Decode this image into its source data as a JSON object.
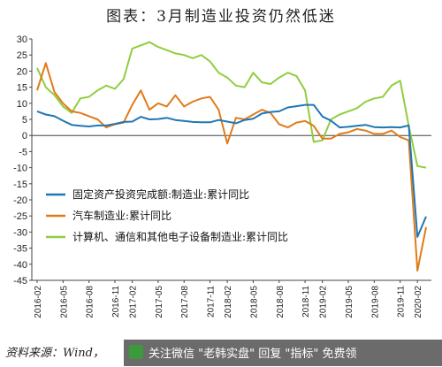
{
  "chart_data": {
    "type": "line",
    "title": "图表：3月制造业投资仍然低迷",
    "xlabel": "",
    "ylabel": "",
    "ylim": [
      -45,
      30
    ],
    "yticks": [
      30,
      25,
      20,
      15,
      10,
      5,
      0,
      -5,
      -10,
      -15,
      -20,
      -25,
      -30,
      -35,
      -40,
      -45
    ],
    "x": [
      "2016-02",
      "2016-03",
      "2016-04",
      "2016-05",
      "2016-06",
      "2016-07",
      "2016-08",
      "2016-09",
      "2016-10",
      "2016-11",
      "2016-12",
      "2017-02",
      "2017-03",
      "2017-04",
      "2017-05",
      "2017-06",
      "2017-07",
      "2017-08",
      "2017-09",
      "2017-10",
      "2017-11",
      "2017-12",
      "2018-02",
      "2018-03",
      "2018-04",
      "2018-05",
      "2018-06",
      "2018-07",
      "2018-08",
      "2018-09",
      "2018-10",
      "2018-11",
      "2018-12",
      "2019-02",
      "2019-03",
      "2019-04",
      "2019-05",
      "2019-06",
      "2019-07",
      "2019-08",
      "2019-09",
      "2019-10",
      "2019-11",
      "2019-12",
      "2020-02",
      "2020-03"
    ],
    "xtick_labels": [
      "2016-02",
      "2016-05",
      "2016-08",
      "2016-11",
      "2017-02",
      "2017-05",
      "2017-08",
      "2017-11",
      "2018-02",
      "2018-05",
      "2018-08",
      "2018-11",
      "2019-02",
      "2019-05",
      "2019-08",
      "2019-11",
      "2020-02"
    ],
    "grid": false,
    "legend_position": "lower-left",
    "series": [
      {
        "name": "固定资产投资完成额:制造业:累计同比",
        "color": "#1f77b4",
        "values": [
          7.5,
          6.5,
          6.0,
          4.6,
          3.3,
          3.0,
          2.8,
          3.1,
          3.1,
          3.6,
          4.2,
          4.3,
          5.8,
          5.0,
          5.1,
          5.5,
          4.8,
          4.5,
          4.2,
          4.1,
          4.1,
          4.8,
          4.3,
          3.8,
          4.8,
          5.2,
          6.8,
          7.3,
          7.5,
          8.7,
          9.1,
          9.5,
          9.5,
          5.9,
          4.6,
          2.5,
          2.7,
          3.0,
          3.3,
          2.6,
          2.5,
          2.6,
          2.5,
          3.1,
          -31.5,
          -25.2
        ]
      },
      {
        "name": "汽车制造业:累计同比",
        "color": "#e07b1a",
        "values": [
          14.0,
          22.5,
          13.5,
          10.0,
          7.5,
          7.0,
          6.0,
          5.0,
          2.5,
          3.5,
          4.0,
          9.5,
          14.0,
          8.0,
          10.0,
          9.0,
          12.5,
          9.0,
          10.5,
          11.5,
          12.0,
          8.0,
          -2.5,
          5.5,
          5.0,
          6.5,
          8.0,
          7.0,
          3.5,
          2.5,
          4.0,
          4.5,
          3.0,
          -1.0,
          -1.0,
          0.5,
          1.0,
          2.0,
          1.5,
          0.5,
          0.5,
          1.5,
          -0.5,
          -1.5,
          -42.0,
          -28.5
        ]
      },
      {
        "name": "计算机、通信和其他电子设备制造业:累计同比",
        "color": "#8fce3e",
        "values": [
          21.0,
          15.0,
          12.5,
          9.0,
          7.0,
          11.5,
          12.0,
          14.0,
          15.5,
          14.5,
          17.5,
          27.0,
          28.0,
          29.0,
          27.5,
          26.5,
          25.5,
          25.0,
          24.0,
          25.0,
          23.0,
          19.5,
          18.0,
          15.5,
          15.0,
          19.5,
          16.5,
          16.0,
          18.0,
          19.5,
          18.5,
          14.0,
          -2.0,
          -1.5,
          5.0,
          6.5,
          7.5,
          8.5,
          10.5,
          11.5,
          12.0,
          15.5,
          17.0,
          3.0,
          -9.5,
          -10.0
        ]
      }
    ]
  },
  "source": "资料来源：Wind，",
  "watermark": "关注微信 \"老韩实盘\" 回复 \"指标\" 免费领"
}
